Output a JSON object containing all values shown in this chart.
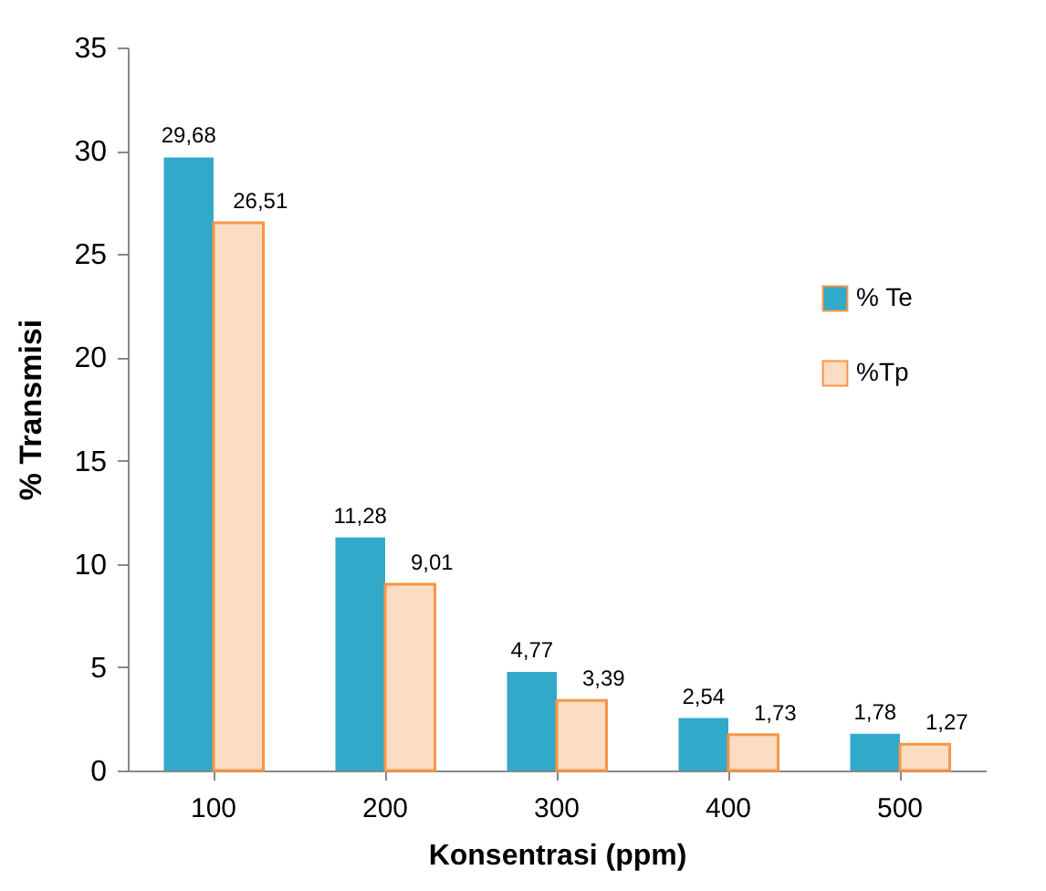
{
  "chart_data": {
    "type": "bar",
    "xlabel": "Konsentrasi (ppm)",
    "ylabel": "% Transmisi",
    "categories": [
      "100",
      "200",
      "300",
      "400",
      "500"
    ],
    "series": [
      {
        "name": "% Te",
        "color": "#31a9c9",
        "values": [
          29.68,
          11.28,
          4.77,
          2.54,
          1.78
        ],
        "value_labels": [
          "29,68",
          "11,28",
          "4,77",
          "2,54",
          "1,78"
        ]
      },
      {
        "name": "%Tp",
        "color": "#fcdcc2",
        "values": [
          26.51,
          9.01,
          3.39,
          1.73,
          1.27
        ],
        "value_labels": [
          "26,51",
          "9,01",
          "3,39",
          "1,73",
          "1,27"
        ]
      }
    ],
    "ylim": [
      0,
      35
    ],
    "yticks": [
      0,
      5,
      10,
      15,
      20,
      25,
      30,
      35
    ],
    "grid": false,
    "legend": "right"
  }
}
